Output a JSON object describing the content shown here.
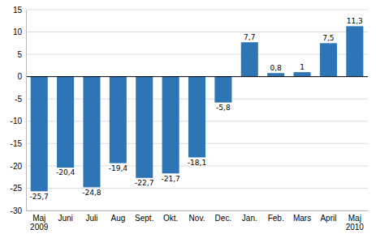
{
  "chart_data": {
    "type": "bar",
    "categories": [
      "Maj\n2009",
      "Juni",
      "Juli",
      "Aug",
      "Sept.",
      "Okt.",
      "Nov.",
      "Dec.",
      "Jan.",
      "Feb.",
      "Mars",
      "April",
      "Maj\n2010"
    ],
    "values": [
      -25.7,
      -20.4,
      -24.8,
      -19.4,
      -22.7,
      -21.7,
      -18.1,
      -5.8,
      7.7,
      0.8,
      1.0,
      7.5,
      11.3
    ],
    "value_labels": [
      "-25,7",
      "-20,4",
      "-24,8",
      "-19,4",
      "-22,7",
      "-21,7",
      "-18,1",
      "-5,8",
      "7,7",
      "0,8",
      "1",
      "7,5",
      "11,3"
    ],
    "color": "#2E75B6",
    "ylim": [
      -30,
      15
    ],
    "yticks": [
      -30,
      -25,
      -20,
      -15,
      -10,
      -5,
      0,
      5,
      10,
      15
    ],
    "grid": true,
    "data_labels": true
  }
}
